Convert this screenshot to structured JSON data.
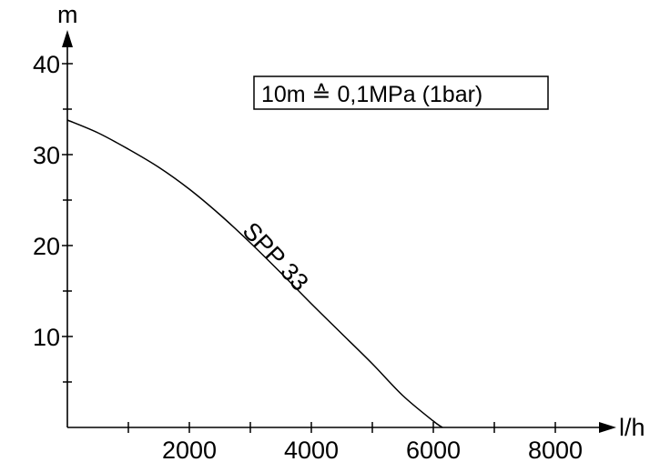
{
  "chart_data": {
    "type": "line",
    "ylabel": "m",
    "xlabel": "l/h",
    "xlim": [
      0,
      9000
    ],
    "ylim": [
      0,
      40
    ],
    "x_major_ticks": [
      2000,
      4000,
      6000,
      8000
    ],
    "x_minor_ticks": [
      1000,
      3000,
      5000,
      7000
    ],
    "y_major_ticks": [
      10,
      20,
      30,
      40
    ],
    "y_minor_ticks": [
      5,
      15,
      25,
      35
    ],
    "x_tick_labels": [
      "2000",
      "4000",
      "6000",
      "8000"
    ],
    "y_tick_labels": [
      "10",
      "20",
      "30",
      "40"
    ],
    "grid": false,
    "annotation": "10m ≙ 0,1MPa (1bar)",
    "series": [
      {
        "name": "SPP 33",
        "x": [
          0,
          500,
          1000,
          1500,
          2000,
          2500,
          3000,
          3500,
          4000,
          4500,
          5000,
          5500,
          6000,
          6150
        ],
        "y": [
          33.8,
          32.4,
          30.6,
          28.6,
          26.2,
          23.4,
          20.3,
          17.0,
          13.6,
          10.3,
          7.0,
          3.5,
          0.7,
          0
        ]
      }
    ],
    "color": "#000000"
  }
}
